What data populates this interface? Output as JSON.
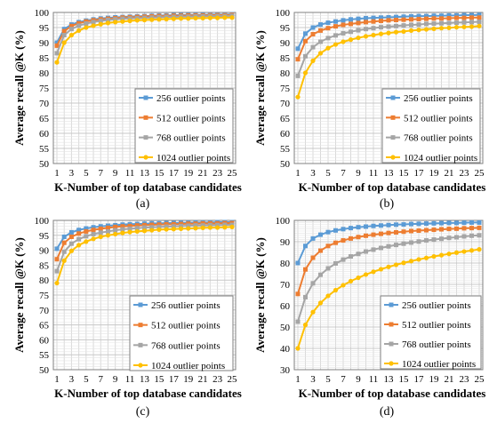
{
  "chart_data": [
    {
      "type": "line",
      "caption": "(a)",
      "xlabel": "K-Number of top database candidates",
      "ylabel": "Average recall @K (%)",
      "x": [
        1,
        2,
        3,
        4,
        5,
        6,
        7,
        8,
        9,
        10,
        11,
        12,
        13,
        14,
        15,
        16,
        17,
        18,
        19,
        20,
        21,
        22,
        23,
        24,
        25
      ],
      "xticks": [
        1,
        3,
        5,
        7,
        9,
        11,
        13,
        15,
        17,
        19,
        21,
        23,
        25
      ],
      "ylim": [
        50,
        100
      ],
      "yticks": [
        50,
        55,
        60,
        65,
        70,
        75,
        80,
        85,
        90,
        95,
        100
      ],
      "grid": true,
      "legend_position": "right",
      "series": [
        {
          "name": "256 outlier points",
          "color": "#5b9bd5",
          "values": [
            90.0,
            94.5,
            96.0,
            96.8,
            97.3,
            97.7,
            98.0,
            98.2,
            98.4,
            98.5,
            98.6,
            98.7,
            98.8,
            98.9,
            99.0,
            99.0,
            99.1,
            99.1,
            99.2,
            99.2,
            99.2,
            99.3,
            99.3,
            99.3,
            99.4
          ]
        },
        {
          "name": "512 outlier points",
          "color": "#ed7d31",
          "values": [
            89.0,
            93.8,
            95.5,
            96.4,
            97.0,
            97.4,
            97.7,
            97.9,
            98.1,
            98.3,
            98.4,
            98.5,
            98.6,
            98.7,
            98.8,
            98.8,
            98.9,
            98.9,
            99.0,
            99.0,
            99.0,
            99.1,
            99.1,
            99.1,
            99.2
          ]
        },
        {
          "name": "768 outlier points",
          "color": "#a5a5a5",
          "values": [
            86.5,
            92.5,
            94.5,
            95.6,
            96.3,
            96.8,
            97.2,
            97.5,
            97.7,
            97.9,
            98.0,
            98.1,
            98.2,
            98.3,
            98.4,
            98.5,
            98.5,
            98.6,
            98.6,
            98.7,
            98.7,
            98.8,
            98.8,
            98.8,
            98.9
          ]
        },
        {
          "name": "1024 outlier points",
          "color": "#ffc000",
          "values": [
            83.5,
            90.0,
            92.5,
            94.0,
            95.0,
            95.6,
            96.1,
            96.5,
            96.8,
            97.0,
            97.2,
            97.4,
            97.5,
            97.6,
            97.7,
            97.8,
            97.9,
            98.0,
            98.0,
            98.1,
            98.1,
            98.2,
            98.2,
            98.3,
            98.3
          ]
        }
      ]
    },
    {
      "type": "line",
      "caption": "(b)",
      "xlabel": "K-Number of top database candidates",
      "ylabel": "Average recall @K (%)",
      "x": [
        1,
        2,
        3,
        4,
        5,
        6,
        7,
        8,
        9,
        10,
        11,
        12,
        13,
        14,
        15,
        16,
        17,
        18,
        19,
        20,
        21,
        22,
        23,
        24,
        25
      ],
      "xticks": [
        1,
        3,
        5,
        7,
        9,
        11,
        13,
        15,
        17,
        19,
        21,
        23,
        25
      ],
      "ylim": [
        50,
        100
      ],
      "yticks": [
        50,
        55,
        60,
        65,
        70,
        75,
        80,
        85,
        90,
        95,
        100
      ],
      "grid": true,
      "legend_position": "right",
      "series": [
        {
          "name": "256 outlier points",
          "color": "#5b9bd5",
          "values": [
            88.0,
            93.0,
            95.0,
            96.0,
            96.6,
            97.0,
            97.4,
            97.7,
            97.9,
            98.1,
            98.2,
            98.3,
            98.4,
            98.5,
            98.6,
            98.7,
            98.8,
            98.8,
            98.9,
            98.9,
            99.0,
            99.0,
            99.1,
            99.1,
            99.2
          ]
        },
        {
          "name": "512 outlier points",
          "color": "#ed7d31",
          "values": [
            84.5,
            90.5,
            92.8,
            94.0,
            94.8,
            95.4,
            95.9,
            96.2,
            96.5,
            96.8,
            97.0,
            97.2,
            97.4,
            97.5,
            97.6,
            97.7,
            97.8,
            97.9,
            98.0,
            98.0,
            98.1,
            98.2,
            98.2,
            98.3,
            98.3
          ]
        },
        {
          "name": "768 outlier points",
          "color": "#a5a5a5",
          "values": [
            79.0,
            85.5,
            88.5,
            90.3,
            91.5,
            92.4,
            93.1,
            93.6,
            94.1,
            94.5,
            94.8,
            95.1,
            95.3,
            95.5,
            95.7,
            95.9,
            96.0,
            96.2,
            96.3,
            96.4,
            96.5,
            96.6,
            96.7,
            96.8,
            96.9
          ]
        },
        {
          "name": "1024 outlier points",
          "color": "#ffc000",
          "values": [
            72.0,
            80.0,
            84.0,
            86.5,
            88.2,
            89.4,
            90.3,
            91.0,
            91.6,
            92.1,
            92.5,
            92.9,
            93.2,
            93.5,
            93.7,
            94.0,
            94.2,
            94.4,
            94.6,
            94.8,
            94.9,
            95.1,
            95.2,
            95.3,
            95.5
          ]
        }
      ]
    },
    {
      "type": "line",
      "caption": "(c)",
      "xlabel": "K-Number of top database candidates",
      "ylabel": "Average recall @K (%)",
      "x": [
        1,
        2,
        3,
        4,
        5,
        6,
        7,
        8,
        9,
        10,
        11,
        12,
        13,
        14,
        15,
        16,
        17,
        18,
        19,
        20,
        21,
        22,
        23,
        24,
        25
      ],
      "xticks": [
        1,
        3,
        5,
        7,
        9,
        11,
        13,
        15,
        17,
        19,
        21,
        23,
        25
      ],
      "ylim": [
        50,
        100
      ],
      "yticks": [
        50,
        55,
        60,
        65,
        70,
        75,
        80,
        85,
        90,
        95,
        100
      ],
      "grid": true,
      "legend_position": "right",
      "series": [
        {
          "name": "256 outlier points",
          "color": "#5b9bd5",
          "values": [
            90.5,
            94.5,
            96.0,
            96.8,
            97.3,
            97.7,
            98.0,
            98.2,
            98.4,
            98.6,
            98.7,
            98.8,
            98.9,
            99.0,
            99.0,
            99.1,
            99.1,
            99.2,
            99.2,
            99.3,
            99.3,
            99.3,
            99.4,
            99.4,
            99.4
          ]
        },
        {
          "name": "512 outlier points",
          "color": "#ed7d31",
          "values": [
            87.0,
            92.5,
            94.5,
            95.6,
            96.3,
            96.8,
            97.2,
            97.5,
            97.8,
            98.0,
            98.1,
            98.3,
            98.4,
            98.5,
            98.6,
            98.7,
            98.7,
            98.8,
            98.9,
            98.9,
            99.0,
            99.0,
            99.0,
            99.1,
            99.1
          ]
        },
        {
          "name": "768 outlier points",
          "color": "#a5a5a5",
          "values": [
            83.0,
            89.5,
            92.2,
            93.7,
            94.7,
            95.4,
            95.9,
            96.3,
            96.7,
            97.0,
            97.2,
            97.4,
            97.6,
            97.7,
            97.8,
            97.9,
            98.0,
            98.1,
            98.2,
            98.3,
            98.3,
            98.4,
            98.4,
            98.5,
            98.5
          ]
        },
        {
          "name": "1024 outlier points",
          "color": "#ffc000",
          "values": [
            79.0,
            86.5,
            89.8,
            91.7,
            92.9,
            93.8,
            94.5,
            95.0,
            95.4,
            95.8,
            96.1,
            96.3,
            96.5,
            96.7,
            96.9,
            97.0,
            97.1,
            97.2,
            97.3,
            97.4,
            97.5,
            97.6,
            97.6,
            97.7,
            97.8
          ]
        }
      ]
    },
    {
      "type": "line",
      "caption": "(d)",
      "xlabel": "K-Number of top database candidates",
      "ylabel": "Average recall @K (%)",
      "x": [
        1,
        2,
        3,
        4,
        5,
        6,
        7,
        8,
        9,
        10,
        11,
        12,
        13,
        14,
        15,
        16,
        17,
        18,
        19,
        20,
        21,
        22,
        23,
        24,
        25
      ],
      "xticks": [
        1,
        3,
        5,
        7,
        9,
        11,
        13,
        15,
        17,
        19,
        21,
        23,
        25
      ],
      "ylim": [
        30,
        100
      ],
      "yticks": [
        30,
        40,
        50,
        60,
        70,
        80,
        90,
        100
      ],
      "grid": true,
      "legend_position": "right",
      "series": [
        {
          "name": "256 outlier points",
          "color": "#5b9bd5",
          "values": [
            80.0,
            88.0,
            91.5,
            93.3,
            94.5,
            95.3,
            95.9,
            96.4,
            96.8,
            97.1,
            97.4,
            97.6,
            97.8,
            98.0,
            98.1,
            98.3,
            98.4,
            98.5,
            98.6,
            98.7,
            98.8,
            98.8,
            98.9,
            99.0,
            99.0
          ]
        },
        {
          "name": "512 outlier points",
          "color": "#ed7d31",
          "values": [
            65.5,
            77.0,
            82.5,
            85.8,
            88.0,
            89.5,
            90.6,
            91.5,
            92.2,
            92.8,
            93.3,
            93.7,
            94.1,
            94.4,
            94.7,
            95.0,
            95.2,
            95.4,
            95.6,
            95.8,
            96.0,
            96.1,
            96.3,
            96.4,
            96.5
          ]
        },
        {
          "name": "768 outlier points",
          "color": "#a5a5a5",
          "values": [
            52.5,
            64.0,
            70.5,
            74.5,
            77.5,
            79.8,
            81.6,
            83.1,
            84.3,
            85.4,
            86.3,
            87.1,
            87.8,
            88.5,
            89.1,
            89.6,
            90.1,
            90.6,
            91.0,
            91.4,
            91.8,
            92.1,
            92.5,
            92.8,
            93.0
          ]
        },
        {
          "name": "1024 outlier points",
          "color": "#ffc000",
          "values": [
            40.0,
            51.0,
            57.0,
            61.3,
            64.6,
            67.3,
            69.6,
            71.5,
            73.1,
            74.6,
            75.9,
            77.1,
            78.2,
            79.2,
            80.1,
            80.9,
            81.7,
            82.4,
            83.1,
            83.7,
            84.3,
            84.9,
            85.4,
            85.9,
            86.4
          ]
        }
      ]
    }
  ]
}
